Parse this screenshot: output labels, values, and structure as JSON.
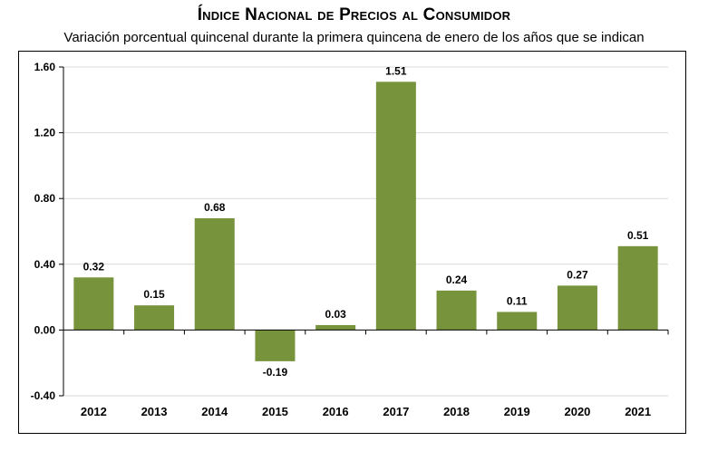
{
  "header": {
    "title": "Índice Nacional de Precios al Consumidor",
    "subtitle": "Variación porcentual quincenal durante la primera quincena de enero de los años que se indican"
  },
  "chart_data": {
    "type": "bar",
    "categories": [
      "2012",
      "2013",
      "2014",
      "2015",
      "2016",
      "2017",
      "2018",
      "2019",
      "2020",
      "2021"
    ],
    "values": [
      0.32,
      0.15,
      0.68,
      -0.19,
      0.03,
      1.51,
      0.24,
      0.11,
      0.27,
      0.51
    ],
    "data_labels": [
      "0.32",
      "0.15",
      "0.68",
      "-0.19",
      "0.03",
      "1.51",
      "0.24",
      "0.11",
      "0.27",
      "0.51"
    ],
    "yticks": [
      -0.4,
      0.0,
      0.4,
      0.8,
      1.2,
      1.6
    ],
    "ytick_labels": [
      "-0.40",
      "0.00",
      "0.40",
      "0.80",
      "1.20",
      "1.60"
    ],
    "ylim": [
      -0.4,
      1.6
    ],
    "grid": true,
    "bar_color": "#77933c",
    "grid_color": "#d9d9d9"
  }
}
